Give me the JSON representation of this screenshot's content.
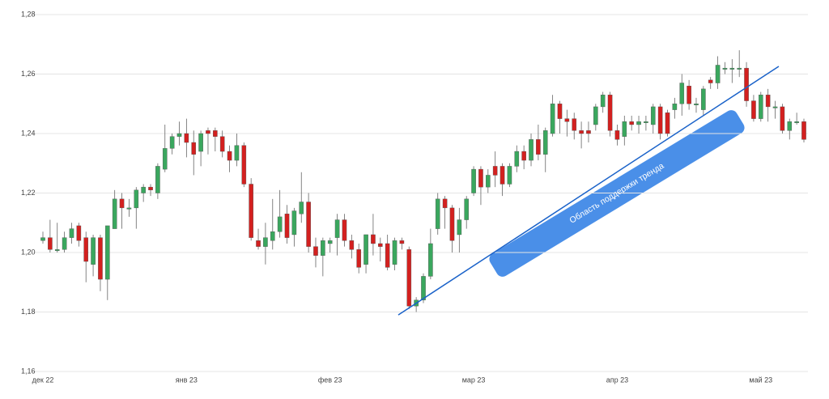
{
  "chart_data": {
    "type": "candlestick",
    "categories": [
      "дек 22",
      null,
      null,
      null,
      null,
      null,
      null,
      null,
      null,
      null,
      null,
      null,
      null,
      null,
      null,
      null,
      null,
      null,
      null,
      null,
      "янв 23",
      null,
      null,
      null,
      null,
      null,
      null,
      null,
      null,
      null,
      null,
      null,
      null,
      null,
      null,
      null,
      null,
      null,
      null,
      null,
      "фев 23",
      null,
      null,
      null,
      null,
      null,
      null,
      null,
      null,
      null,
      null,
      null,
      null,
      null,
      null,
      null,
      null,
      null,
      null,
      null,
      "мар 23",
      null,
      null,
      null,
      null,
      null,
      null,
      null,
      null,
      null,
      null,
      null,
      null,
      null,
      null,
      null,
      null,
      null,
      null,
      null,
      "апр 23",
      null,
      null,
      null,
      null,
      null,
      null,
      null,
      null,
      null,
      null,
      null,
      null,
      null,
      null,
      null,
      null,
      null,
      null,
      null,
      "май 23",
      null,
      null,
      null,
      null,
      null,
      null
    ],
    "open": [
      1.204,
      1.205,
      1.201,
      1.201,
      1.205,
      1.209,
      1.205,
      1.196,
      1.205,
      1.191,
      1.208,
      1.218,
      1.215,
      1.215,
      1.22,
      1.222,
      1.22,
      1.228,
      1.235,
      1.239,
      1.24,
      1.237,
      1.234,
      1.241,
      1.241,
      1.239,
      1.234,
      1.231,
      1.236,
      1.223,
      1.204,
      1.202,
      1.204,
      1.207,
      1.213,
      1.206,
      1.213,
      1.217,
      1.202,
      1.199,
      1.203,
      1.205,
      1.211,
      1.204,
      1.201,
      1.196,
      1.206,
      1.203,
      1.203,
      1.196,
      1.204,
      1.201,
      1.182,
      1.184,
      1.192,
      1.208,
      1.218,
      1.215,
      1.206,
      1.211,
      1.22,
      1.228,
      1.222,
      1.229,
      1.229,
      1.223,
      1.229,
      1.234,
      1.231,
      1.238,
      1.233,
      1.24,
      1.25,
      1.245,
      1.245,
      1.241,
      1.241,
      1.243,
      1.249,
      1.253,
      1.241,
      1.239,
      1.244,
      1.243,
      1.244,
      1.243,
      1.249,
      1.247,
      1.248,
      1.25,
      1.256,
      1.25,
      1.248,
      1.258,
      1.257,
      1.262,
      1.262,
      1.262,
      1.262,
      1.251,
      1.245,
      1.253,
      1.249,
      1.249,
      1.241,
      1.244,
      1.244
    ],
    "high": [
      1.207,
      1.211,
      1.21,
      1.207,
      1.21,
      1.21,
      1.207,
      1.206,
      1.206,
      1.209,
      1.221,
      1.22,
      1.218,
      1.222,
      1.223,
      1.223,
      1.23,
      1.243,
      1.24,
      1.244,
      1.245,
      1.241,
      1.241,
      1.242,
      1.242,
      1.241,
      1.236,
      1.24,
      1.237,
      1.225,
      1.208,
      1.21,
      1.218,
      1.221,
      1.216,
      1.215,
      1.227,
      1.22,
      1.205,
      1.205,
      1.205,
      1.213,
      1.213,
      1.206,
      1.203,
      1.206,
      1.213,
      1.205,
      1.206,
      1.205,
      1.205,
      1.202,
      1.185,
      1.193,
      1.208,
      1.22,
      1.219,
      1.216,
      1.215,
      1.219,
      1.229,
      1.229,
      1.228,
      1.234,
      1.23,
      1.23,
      1.236,
      1.236,
      1.24,
      1.243,
      1.242,
      1.253,
      1.251,
      1.248,
      1.247,
      1.244,
      1.244,
      1.25,
      1.254,
      1.254,
      1.243,
      1.246,
      1.246,
      1.246,
      1.246,
      1.25,
      1.25,
      1.248,
      1.252,
      1.26,
      1.258,
      1.252,
      1.256,
      1.259,
      1.266,
      1.264,
      1.265,
      1.268,
      1.264,
      1.253,
      1.254,
      1.255,
      1.251,
      1.25,
      1.245,
      1.247,
      1.245
    ],
    "low": [
      1.203,
      1.2,
      1.2,
      1.2,
      1.203,
      1.202,
      1.19,
      1.192,
      1.187,
      1.184,
      1.208,
      1.208,
      1.212,
      1.208,
      1.217,
      1.219,
      1.218,
      1.227,
      1.233,
      1.236,
      1.232,
      1.226,
      1.229,
      1.233,
      1.234,
      1.232,
      1.227,
      1.229,
      1.222,
      1.204,
      1.201,
      1.196,
      1.201,
      1.205,
      1.203,
      1.202,
      1.21,
      1.2,
      1.195,
      1.192,
      1.2,
      1.199,
      1.202,
      1.198,
      1.193,
      1.193,
      1.199,
      1.197,
      1.194,
      1.194,
      1.201,
      1.181,
      1.18,
      1.183,
      1.191,
      1.206,
      1.208,
      1.2,
      1.2,
      1.208,
      1.219,
      1.216,
      1.22,
      1.222,
      1.219,
      1.222,
      1.227,
      1.228,
      1.229,
      1.231,
      1.227,
      1.239,
      1.24,
      1.239,
      1.238,
      1.235,
      1.237,
      1.241,
      1.247,
      1.239,
      1.236,
      1.236,
      1.241,
      1.24,
      1.241,
      1.24,
      1.238,
      1.239,
      1.245,
      1.246,
      1.248,
      1.247,
      1.246,
      1.255,
      1.255,
      1.26,
      1.257,
      1.259,
      1.249,
      1.244,
      1.244,
      1.244,
      1.245,
      1.24,
      1.238,
      1.243,
      1.237
    ],
    "close": [
      1.205,
      1.201,
      1.201,
      1.205,
      1.208,
      1.204,
      1.197,
      1.205,
      1.191,
      1.209,
      1.218,
      1.215,
      1.215,
      1.221,
      1.222,
      1.221,
      1.229,
      1.235,
      1.239,
      1.24,
      1.237,
      1.233,
      1.24,
      1.24,
      1.239,
      1.234,
      1.231,
      1.236,
      1.223,
      1.205,
      1.202,
      1.205,
      1.207,
      1.212,
      1.205,
      1.214,
      1.217,
      1.202,
      1.199,
      1.204,
      1.204,
      1.211,
      1.204,
      1.201,
      1.195,
      1.206,
      1.203,
      1.202,
      1.195,
      1.204,
      1.203,
      1.182,
      1.184,
      1.192,
      1.203,
      1.218,
      1.215,
      1.204,
      1.211,
      1.218,
      1.228,
      1.222,
      1.226,
      1.226,
      1.223,
      1.229,
      1.234,
      1.231,
      1.238,
      1.233,
      1.241,
      1.25,
      1.245,
      1.244,
      1.241,
      1.24,
      1.24,
      1.249,
      1.253,
      1.241,
      1.238,
      1.244,
      1.243,
      1.244,
      1.244,
      1.249,
      1.24,
      1.24,
      1.25,
      1.257,
      1.25,
      1.25,
      1.255,
      1.257,
      1.263,
      1.262,
      1.262,
      1.262,
      1.251,
      1.245,
      1.253,
      1.249,
      1.249,
      1.241,
      1.244,
      1.244,
      1.238
    ],
    "up_color": "#3aa75e",
    "down_color": "#d3201f",
    "ylim": [
      1.16,
      1.28
    ],
    "yticks": [
      {
        "value": 1.16,
        "label": "1,16"
      },
      {
        "value": 1.18,
        "label": "1,18"
      },
      {
        "value": 1.2,
        "label": "1,20"
      },
      {
        "value": 1.22,
        "label": "1,22"
      },
      {
        "value": 1.24,
        "label": "1,24"
      },
      {
        "value": 1.26,
        "label": "1,26"
      },
      {
        "value": 1.28,
        "label": "1,28"
      }
    ],
    "grid": true,
    "trend_line": {
      "from": {
        "index": 49.5,
        "value": 1.179
      },
      "to": {
        "index": 102.5,
        "value": 1.2626
      },
      "color": "#1a62c9"
    },
    "annotation": "Область поддержки тренда"
  }
}
